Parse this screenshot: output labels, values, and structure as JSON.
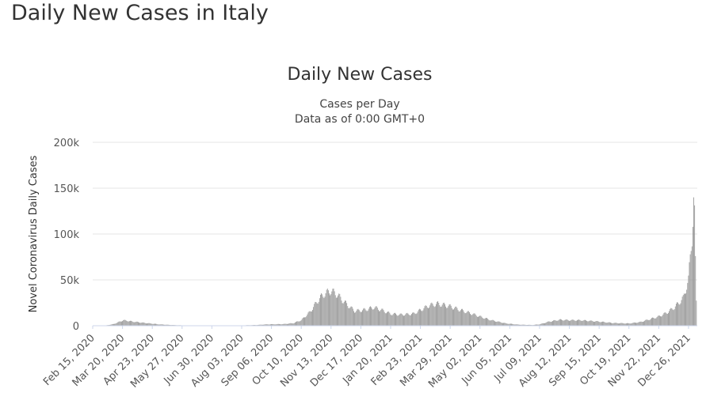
{
  "page": {
    "title": "Daily New Cases in Italy"
  },
  "chart_data": {
    "type": "bar",
    "title": "Daily New Cases",
    "subtitle_lines": [
      "Cases per Day",
      "Data as of 0:00 GMT+0"
    ],
    "ylabel": "Novel Coronavirus Daily Cases",
    "ylim": [
      0,
      200000
    ],
    "yticks": [
      {
        "value": 0,
        "label": "0"
      },
      {
        "value": 50000,
        "label": "50k"
      },
      {
        "value": 100000,
        "label": "100k"
      },
      {
        "value": 150000,
        "label": "150k"
      },
      {
        "value": 200000,
        "label": "200k"
      }
    ],
    "xdomain": [
      "2020-02-15",
      "2022-01-05"
    ],
    "xticks": [
      "Feb 15, 2020",
      "Mar 20, 2020",
      "Apr 23, 2020",
      "May 27, 2020",
      "Jun 30, 2020",
      "Aug 03, 2020",
      "Sep 06, 2020",
      "Oct 10, 2020",
      "Nov 13, 2020",
      "Dec 17, 2020",
      "Jan 20, 2021",
      "Feb 23, 2021",
      "Mar 29, 2021",
      "May 02, 2021",
      "Jun 05, 2021",
      "Jul 09, 2021",
      "Aug 12, 2021",
      "Sep 15, 2021",
      "Oct 19, 2021",
      "Nov 22, 2021",
      "Dec 26, 2021"
    ],
    "grid": true,
    "legend": "none",
    "bar_color": "#999999",
    "series": [
      {
        "x": [
          "2020-02-15",
          "2020-03-01",
          "2020-03-10",
          "2020-03-21",
          "2020-04-01",
          "2020-04-15",
          "2020-05-01",
          "2020-05-15",
          "2020-06-01",
          "2020-07-01",
          "2020-08-01",
          "2020-08-20",
          "2020-09-01",
          "2020-09-20",
          "2020-10-01",
          "2020-10-10",
          "2020-10-20",
          "2020-10-31",
          "2020-11-06",
          "2020-11-13",
          "2020-11-20",
          "2020-11-28",
          "2020-12-10",
          "2020-12-20",
          "2021-01-01",
          "2021-01-10",
          "2021-01-20",
          "2021-02-01",
          "2021-02-15",
          "2021-02-23",
          "2021-03-05",
          "2021-03-15",
          "2021-03-29",
          "2021-04-10",
          "2021-04-20",
          "2021-05-02",
          "2021-05-15",
          "2021-06-01",
          "2021-06-15",
          "2021-07-01",
          "2021-07-09",
          "2021-07-20",
          "2021-08-01",
          "2021-08-12",
          "2021-08-25",
          "2021-09-01",
          "2021-09-15",
          "2021-10-01",
          "2021-10-19",
          "2021-11-01",
          "2021-11-22",
          "2021-12-01",
          "2021-12-10",
          "2021-12-20",
          "2021-12-26",
          "2021-12-30",
          "2022-01-01",
          "2022-01-02",
          "2022-01-03",
          "2022-01-04"
        ],
        "values": [
          0,
          300,
          1800,
          6000,
          4500,
          3000,
          1500,
          800,
          300,
          200,
          350,
          800,
          1500,
          1800,
          2800,
          6000,
          15000,
          30000,
          35000,
          38000,
          34000,
          26000,
          16000,
          17000,
          20000,
          17000,
          13000,
          12000,
          13000,
          17000,
          22000,
          24000,
          21000,
          17000,
          14000,
          10000,
          6000,
          2500,
          1200,
          800,
          1500,
          4500,
          6500,
          6000,
          6000,
          5500,
          4500,
          3000,
          2500,
          4000,
          10000,
          14000,
          20000,
          30000,
          50000,
          98000,
          140000,
          120000,
          68000,
          26000
        ]
      }
    ]
  }
}
